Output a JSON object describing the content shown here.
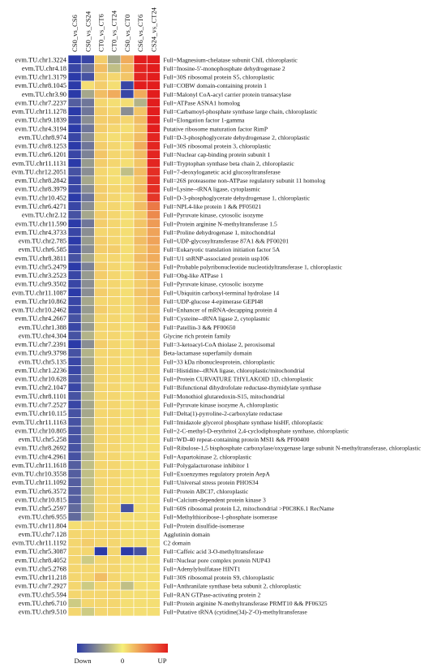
{
  "chart_data": {
    "type": "heatmap",
    "columns": [
      "CS0_vs_CS6",
      "CS0_vs_CS24",
      "CT0_vs_CT6",
      "CT0_vs_CT24",
      "CS0_vs_CT0",
      "CS6_vs_CT6",
      "CS24_vs_CT24"
    ],
    "rows": [
      {
        "gene": "evm.TU.chr1.3224",
        "desc": "Full=Magnesium-chelatase subunit ChlI, chloroplastic",
        "values": [
          -1.5,
          -1.4,
          0.4,
          -0.6,
          0.8,
          2.5,
          2.5
        ]
      },
      {
        "gene": "evm.TU.chr4.18",
        "desc": "Full=Inosine-5'-monophosphate dehydrogenase 2",
        "values": [
          -1.4,
          -1.0,
          0.6,
          -0.4,
          0.6,
          2.4,
          2.5
        ]
      },
      {
        "gene": "evm.TU.chr1.3179",
        "desc": "Full=30S ribosomal protein S5, chloroplastic",
        "values": [
          -1.5,
          -1.3,
          0.4,
          0.3,
          0.5,
          2.4,
          2.5
        ]
      },
      {
        "gene": "evm.TU.chr8.1045",
        "desc": "Full=COBW domain-containing protein 1",
        "values": [
          -1.5,
          0.2,
          0.4,
          0.2,
          -1.4,
          2.5,
          2.5
        ]
      },
      {
        "gene": "evm.TU.chr3.90",
        "desc": "Full=Malonyl CoA-acyl carrier protein transacylase",
        "values": [
          -1.5,
          -0.6,
          0.6,
          0.8,
          -1.4,
          0.8,
          2.5
        ]
      },
      {
        "gene": "evm.TU.chr7.2237",
        "desc": "Full=ATPase ASNA1 homolog",
        "values": [
          -1.2,
          -1.0,
          0.3,
          0.2,
          0.2,
          -0.5,
          2.5
        ]
      },
      {
        "gene": "evm.TU.chr11.1278",
        "desc": "Full=Carbamoyl-phosphate synthase large chain, chloroplastic",
        "values": [
          -1.5,
          -1.0,
          0.4,
          0.3,
          -0.8,
          0.5,
          2.5
        ]
      },
      {
        "gene": "evm.TU.chr9.1839",
        "desc": "Full=Elongation factor 1-gamma",
        "values": [
          -1.4,
          -0.8,
          0.4,
          0.4,
          0.3,
          0.6,
          2.5
        ]
      },
      {
        "gene": "evm.TU.chr4.3194",
        "desc": "Putative ribosome maturation factor RimP",
        "values": [
          -1.5,
          -1.0,
          0.4,
          0.3,
          0.2,
          0.5,
          2.5
        ]
      },
      {
        "gene": "evm.TU.chr8.974",
        "desc": "Full=D-3-phosphoglycerate dehydrogenase 2, chloroplastic",
        "values": [
          -1.4,
          -0.8,
          0.3,
          0.2,
          0.3,
          0.6,
          2.4
        ]
      },
      {
        "gene": "evm.TU.chr8.1253",
        "desc": "Full=30S ribosomal protein 3, chloroplastic",
        "values": [
          -1.5,
          -1.0,
          0.4,
          0.3,
          0.2,
          0.8,
          2.4
        ]
      },
      {
        "gene": "evm.TU.chr6.1201",
        "desc": "Full=Nuclear cap-binding protein subunit 1",
        "values": [
          -1.4,
          -0.9,
          0.5,
          0.3,
          0.3,
          0.6,
          2.4
        ]
      },
      {
        "gene": "evm.TU.chr11.1131",
        "desc": "Full=Tryptophan synthase beta chain 2, chloroplastic",
        "values": [
          -1.5,
          -0.7,
          0.4,
          0.3,
          0.2,
          0.5,
          2.4
        ]
      },
      {
        "gene": "evm.TU.chr12.2051",
        "desc": "Full=7-deoxyloganetic acid glucosyltransferase",
        "values": [
          -1.3,
          -0.8,
          0.3,
          0.2,
          -0.4,
          0.6,
          2.3
        ]
      },
      {
        "gene": "evm.TU.chr8.2842",
        "desc": "Full=26S proteasome non-ATPase regulatory subunit 11 homolog",
        "values": [
          -1.4,
          -0.6,
          0.3,
          0.2,
          0.2,
          0.5,
          2.3
        ]
      },
      {
        "gene": "evm.TU.chr8.3979",
        "desc": "Full=Lysine--tRNA ligase, cytoplasmic",
        "values": [
          -1.4,
          -0.8,
          0.4,
          0.3,
          0.3,
          0.6,
          2.3
        ]
      },
      {
        "gene": "evm.TU.chr10.452",
        "desc": "Full=D-3-phosphoglycerate dehydrogenase 1, chloroplastic",
        "values": [
          -1.5,
          -1.0,
          0.4,
          0.3,
          0.2,
          0.5,
          2.2
        ]
      },
      {
        "gene": "evm.TU.chr6.4271",
        "desc": "Full=NPL4-like protein 1 && PF05021",
        "values": [
          -1.4,
          -0.8,
          0.3,
          0.3,
          0.2,
          0.6,
          1.4
        ]
      },
      {
        "gene": "evm.TU.chr2.12",
        "desc": "Full=Pyruvate kinase, cytosolic isozyme",
        "values": [
          -1.3,
          -0.6,
          0.4,
          0.3,
          0.2,
          0.4,
          1.2
        ]
      },
      {
        "gene": "evm.TU.chr11.590",
        "desc": "Full=Protein arginine N-methyltransferase 1.5",
        "values": [
          -1.5,
          -1.0,
          0.4,
          0.3,
          0.2,
          0.5,
          1.0
        ]
      },
      {
        "gene": "evm.TU.chr4.3733",
        "desc": "Full=Proline dehydrogenase 1, mitochondrial",
        "values": [
          -1.4,
          -0.8,
          0.3,
          0.3,
          0.2,
          0.5,
          0.9
        ]
      },
      {
        "gene": "evm.TU.chr2.785",
        "desc": "Full=UDP-glycosyltransferase 87A1 && PF00201",
        "values": [
          -1.5,
          -0.7,
          0.4,
          0.3,
          0.2,
          0.6,
          0.9
        ]
      },
      {
        "gene": "evm.TU.chr6.585",
        "desc": "Full=Eukaryotic translation initiation factor 5A",
        "values": [
          -1.4,
          -0.8,
          0.4,
          0.4,
          0.2,
          0.5,
          0.8
        ]
      },
      {
        "gene": "evm.TU.chr8.3811",
        "desc": "Full=U1 snRNP-associated protein usp106",
        "values": [
          -1.3,
          -0.6,
          0.3,
          0.3,
          0.2,
          0.6,
          0.8
        ]
      },
      {
        "gene": "evm.TU.chr5.2479",
        "desc": "Full=Probable polyribonucleotide nucleotidyltransferase 1, chloroplastic",
        "values": [
          -1.5,
          -0.9,
          0.4,
          0.3,
          0.2,
          0.5,
          0.7
        ]
      },
      {
        "gene": "evm.TU.chr3.2523",
        "desc": "Full=Obg-like ATPase 1",
        "values": [
          -1.4,
          -0.7,
          0.4,
          0.3,
          0.2,
          0.5,
          0.7
        ]
      },
      {
        "gene": "evm.TU.chr9.3502",
        "desc": "Full=Pyruvate kinase, cytosolic isozyme",
        "values": [
          -1.4,
          -0.8,
          0.3,
          0.3,
          0.2,
          0.4,
          0.6
        ]
      },
      {
        "gene": "evm.TU.chr11.1087",
        "desc": "Full=Ubiquitin carboxyl-terminal hydrolase 14",
        "values": [
          -1.5,
          -0.8,
          0.4,
          0.3,
          0.2,
          0.5,
          0.6
        ]
      },
      {
        "gene": "evm.TU.chr10.862",
        "desc": "Full=UDP-glucose 4-epimerase GEPI48",
        "values": [
          -1.4,
          -0.6,
          0.3,
          0.3,
          0.2,
          0.4,
          0.6
        ]
      },
      {
        "gene": "evm.TU.chr10.2462",
        "desc": "Full=Enhancer of mRNA-decapping protein 4",
        "values": [
          -1.4,
          -0.7,
          0.4,
          0.3,
          0.2,
          0.4,
          0.5
        ]
      },
      {
        "gene": "evm.TU.chr4.2667",
        "desc": "Full=Cysteine--tRNA ligase 2, cytoplasmic",
        "values": [
          -1.3,
          -0.6,
          0.3,
          0.3,
          0.2,
          0.4,
          0.5
        ]
      },
      {
        "gene": "evm.TU.chr1.388",
        "desc": "Full=Patellin-3 && PF00650",
        "values": [
          -1.4,
          -0.7,
          0.3,
          0.3,
          0.2,
          0.3,
          0.5
        ]
      },
      {
        "gene": "evm.TU.chr4.304",
        "desc": "Glycine rich protein family",
        "values": [
          -1.3,
          -0.5,
          0.3,
          0.3,
          0.2,
          0.4,
          0.4
        ]
      },
      {
        "gene": "evm.TU.chr7.2391",
        "desc": "Full=3-ketoacyl-CoA thiolase 2, peroxisomal",
        "values": [
          -1.5,
          -0.8,
          0.4,
          0.3,
          0.2,
          0.4,
          0.4
        ]
      },
      {
        "gene": "evm.TU.chr9.3798",
        "desc": "Beta-lactamase superfamily domain",
        "values": [
          -1.3,
          -0.5,
          0.3,
          0.3,
          0.2,
          0.3,
          0.4
        ]
      },
      {
        "gene": "evm.TU.chr5.135",
        "desc": "Full=33 kDa ribonucleoprotein, chloroplastic",
        "values": [
          -1.4,
          -0.6,
          0.3,
          0.3,
          0.2,
          0.3,
          0.3
        ]
      },
      {
        "gene": "evm.TU.chr1.2236",
        "desc": "Full=Histidine--tRNA ligase, chloroplastic/mitochondrial",
        "values": [
          -1.4,
          -0.6,
          0.3,
          0.3,
          0.2,
          0.3,
          0.3
        ]
      },
      {
        "gene": "evm.TU.chr10.628",
        "desc": "Full=Protein CURVATURE THYLAKOID 1D, chloroplastic",
        "values": [
          -1.3,
          -0.6,
          0.3,
          0.3,
          0.2,
          0.3,
          0.3
        ]
      },
      {
        "gene": "evm.TU.chr2.1047",
        "desc": "Full=Bifunctional dihydrofolate reductase-thymidylate synthase",
        "values": [
          -1.4,
          -0.6,
          0.3,
          0.3,
          0.2,
          0.3,
          0.3
        ]
      },
      {
        "gene": "evm.TU.chr8.1101",
        "desc": "Full=Monothiol glutaredoxin-S15, mitochondrial",
        "values": [
          -1.3,
          -0.5,
          0.3,
          0.3,
          0.2,
          0.3,
          0.3
        ]
      },
      {
        "gene": "evm.TU.chr7.2527",
        "desc": "Full=Pyruvate kinase isozyme A, chloroplastic",
        "values": [
          -1.4,
          -0.6,
          0.3,
          0.3,
          0.2,
          0.3,
          0.3
        ]
      },
      {
        "gene": "evm.TU.chr10.115",
        "desc": "Full=Delta(1)-pyrroline-2-carboxylate reductase",
        "values": [
          -1.3,
          -0.6,
          0.3,
          0.3,
          0.2,
          0.3,
          0.2
        ]
      },
      {
        "gene": "evm.TU.chr11.1163",
        "desc": "Full=Imidazole glycerol phosphate synthase hisHF, chloroplastic",
        "values": [
          -1.3,
          -0.5,
          0.3,
          0.3,
          0.2,
          0.3,
          0.2
        ]
      },
      {
        "gene": "evm.TU.chr10.805",
        "desc": "Full=2-C-methyl-D-erythritol 2,4-cyclodiphosphate synthase, chloroplastic",
        "values": [
          -1.3,
          -0.5,
          0.3,
          0.3,
          0.2,
          0.2,
          0.2
        ]
      },
      {
        "gene": "evm.TU.chr5.258",
        "desc": "Full=WD-40 repeat-containing protein MSI1 && PF00400",
        "values": [
          -1.3,
          -0.5,
          0.3,
          0.3,
          0.2,
          0.2,
          0.2
        ]
      },
      {
        "gene": "evm.TU.chr8.2692",
        "desc": "Full=Ribulose-1,5 bisphosphate carboxylase/oxygenase large subunit N-methyltransferase, chloroplastic",
        "values": [
          -1.3,
          -0.5,
          0.3,
          0.3,
          0.2,
          0.2,
          0.2
        ]
      },
      {
        "gene": "evm.TU.chr4.2961",
        "desc": "Full=Aspartokinase 2, chloroplastic",
        "values": [
          -1.3,
          -0.5,
          0.3,
          0.3,
          0.2,
          0.2,
          0.2
        ]
      },
      {
        "gene": "evm.TU.chr11.1618",
        "desc": "Full=Polygalacturonase inhibitor 1",
        "values": [
          -1.2,
          -0.4,
          0.3,
          0.3,
          0.2,
          0.2,
          0.2
        ]
      },
      {
        "gene": "evm.TU.chr10.3558",
        "desc": "Full=Exoenzymes regulatory protein AepA",
        "values": [
          -1.2,
          -0.4,
          0.3,
          0.3,
          0.2,
          0.2,
          0.2
        ]
      },
      {
        "gene": "evm.TU.chr11.1092",
        "desc": "Full=Universal stress protein PHOS34",
        "values": [
          -1.2,
          -0.4,
          0.3,
          0.3,
          0.2,
          0.2,
          0.2
        ]
      },
      {
        "gene": "evm.TU.chr6.3572",
        "desc": "Full=Protein ABCI7, chloroplastic",
        "values": [
          -1.2,
          -0.4,
          0.3,
          0.3,
          0.2,
          0.2,
          0.2
        ]
      },
      {
        "gene": "evm.TU.chr10.815",
        "desc": "Full=Calcium-dependent protein kinase 3",
        "values": [
          -1.2,
          -0.4,
          0.3,
          0.3,
          0.2,
          0.2,
          0.2
        ]
      },
      {
        "gene": "evm.TU.chr5.2597",
        "desc": "Full=60S ribosomal protein L2, mitochondrial >P0C8K6.1 RecName",
        "values": [
          -1.1,
          -0.4,
          0.3,
          0.3,
          -1.3,
          0.2,
          0.2
        ]
      },
      {
        "gene": "evm.TU.chr6.955",
        "desc": "Full=Methylthioribose-1-phosphate isomerase",
        "values": [
          -1.1,
          -0.4,
          0.3,
          0.3,
          0.2,
          0.2,
          0.2
        ]
      },
      {
        "gene": "evm.TU.chr11.804",
        "desc": "Full=Protein disulfide-isomerase",
        "values": [
          0.2,
          0.3,
          0.3,
          0.3,
          0.2,
          0.2,
          0.2
        ]
      },
      {
        "gene": "evm.TU.chr7.128",
        "desc": "Agglutinin domain",
        "values": [
          0.3,
          0.3,
          0.3,
          0.3,
          0.2,
          0.2,
          0.2
        ]
      },
      {
        "gene": "evm.TU.chr11.1192",
        "desc": "C2 domain",
        "values": [
          0.3,
          0.4,
          0.3,
          0.3,
          0.2,
          0.2,
          0.2
        ]
      },
      {
        "gene": "evm.TU.chr5.3087",
        "desc": "Full=Caffeic acid 3-O-methyltransferase",
        "values": [
          0.3,
          0.3,
          -1.5,
          0.3,
          -1.5,
          -1.3,
          0.2
        ]
      },
      {
        "gene": "evm.TU.chr8.4052",
        "desc": "Full=Nuclear pore complex protein NUP43",
        "values": [
          0.3,
          -0.3,
          0.3,
          0.3,
          0.2,
          0.2,
          0.2
        ]
      },
      {
        "gene": "evm.TU.chr5.2768",
        "desc": "Full=Adenylylsulfatase HINT1",
        "values": [
          0.3,
          0.3,
          0.3,
          0.3,
          0.2,
          0.2,
          0.2
        ]
      },
      {
        "gene": "evm.TU.chr11.218",
        "desc": "Full=30S ribosomal protein S9, chloroplastic",
        "values": [
          0.3,
          0.3,
          0.6,
          0.3,
          0.2,
          0.2,
          0.2
        ]
      },
      {
        "gene": "evm.TU.chr7.2927",
        "desc": "Full=Anthranilate synthase beta subunit 2, chloroplastic",
        "values": [
          0.3,
          -0.3,
          0.3,
          0.3,
          -0.4,
          0.2,
          0.2
        ]
      },
      {
        "gene": "evm.TU.chr5.594",
        "desc": "Full=RAN GTPase-activating protein 2",
        "values": [
          0.3,
          0.3,
          0.3,
          0.3,
          0.2,
          0.2,
          0.2
        ]
      },
      {
        "gene": "evm.TU.chr6.710",
        "desc": "Full=Protein arginine N-methyltransferase PRMT10 && PF06325",
        "values": [
          -0.3,
          0.3,
          0.3,
          0.3,
          0.2,
          0.2,
          0.2
        ]
      },
      {
        "gene": "evm.TU.chr9.510",
        "desc": "Full=Putative tRNA (cytidine(34)-2'-O)-methyltransferase",
        "values": [
          0.3,
          -0.3,
          0.3,
          0.3,
          0.2,
          0.2,
          0.2
        ]
      }
    ],
    "color_scale": {
      "min": -1.5,
      "mid": 0,
      "max": 2.5,
      "low_color": "#2b3aa8",
      "mid_color": "#f6ef7a",
      "high_color": "#e21d1d"
    },
    "legend": {
      "low_label": "Down",
      "mid_label": "0",
      "high_label": "UP",
      "placement": "bottom"
    }
  }
}
